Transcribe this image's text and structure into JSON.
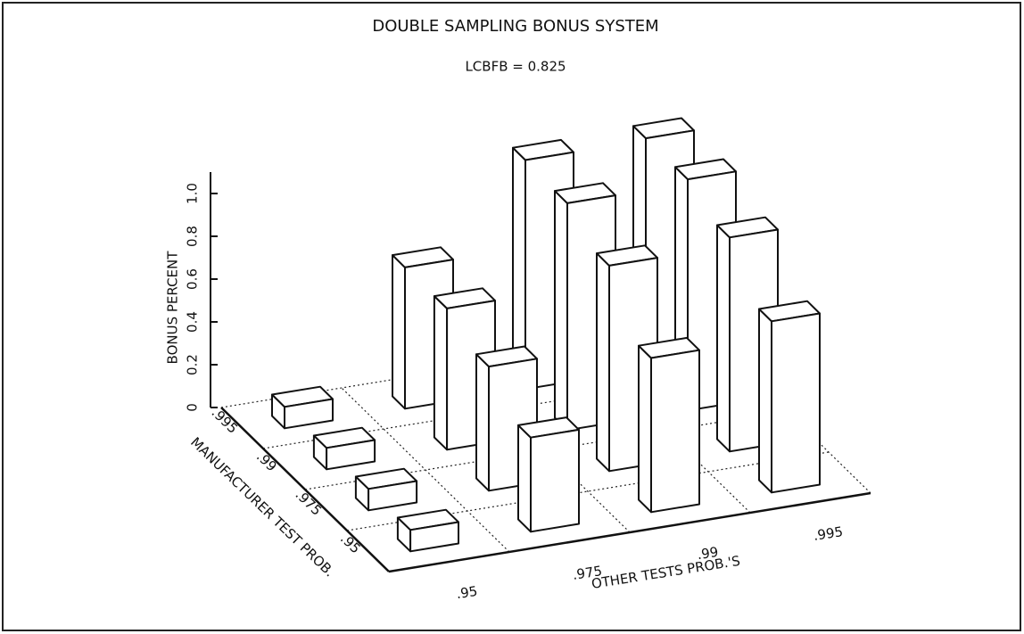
{
  "chart_data": {
    "type": "bar3d",
    "title": "DOUBLE SAMPLING BONUS SYSTEM",
    "subtitle": "LCBFB = 0.825",
    "x_label": "OTHER TESTS PROB.'S",
    "depth_label": "MANUFACTURER TEST PROB.",
    "y_label": "BONUS PERCENT",
    "categories": [
      ".95",
      ".975",
      ".99",
      ".995"
    ],
    "series": [
      {
        "name": ".995",
        "color": "#ffffff",
        "values": [
          0.1,
          0.66,
          1.07,
          1.08
        ]
      },
      {
        "name": ".99",
        "color": "#ffffff",
        "values": [
          0.1,
          0.66,
          1.06,
          1.08
        ]
      },
      {
        "name": ".975",
        "color": "#ffffff",
        "values": [
          0.1,
          0.58,
          0.96,
          1.0
        ]
      },
      {
        "name": ".95",
        "color": "#ffffff",
        "values": [
          0.1,
          0.44,
          0.72,
          0.8
        ]
      }
    ],
    "ylim": [
      0,
      1.1
    ],
    "yticks": [
      0,
      0.2,
      0.4,
      0.6,
      0.8,
      {
        "value": 1,
        "label": "1.0"
      }
    ]
  }
}
